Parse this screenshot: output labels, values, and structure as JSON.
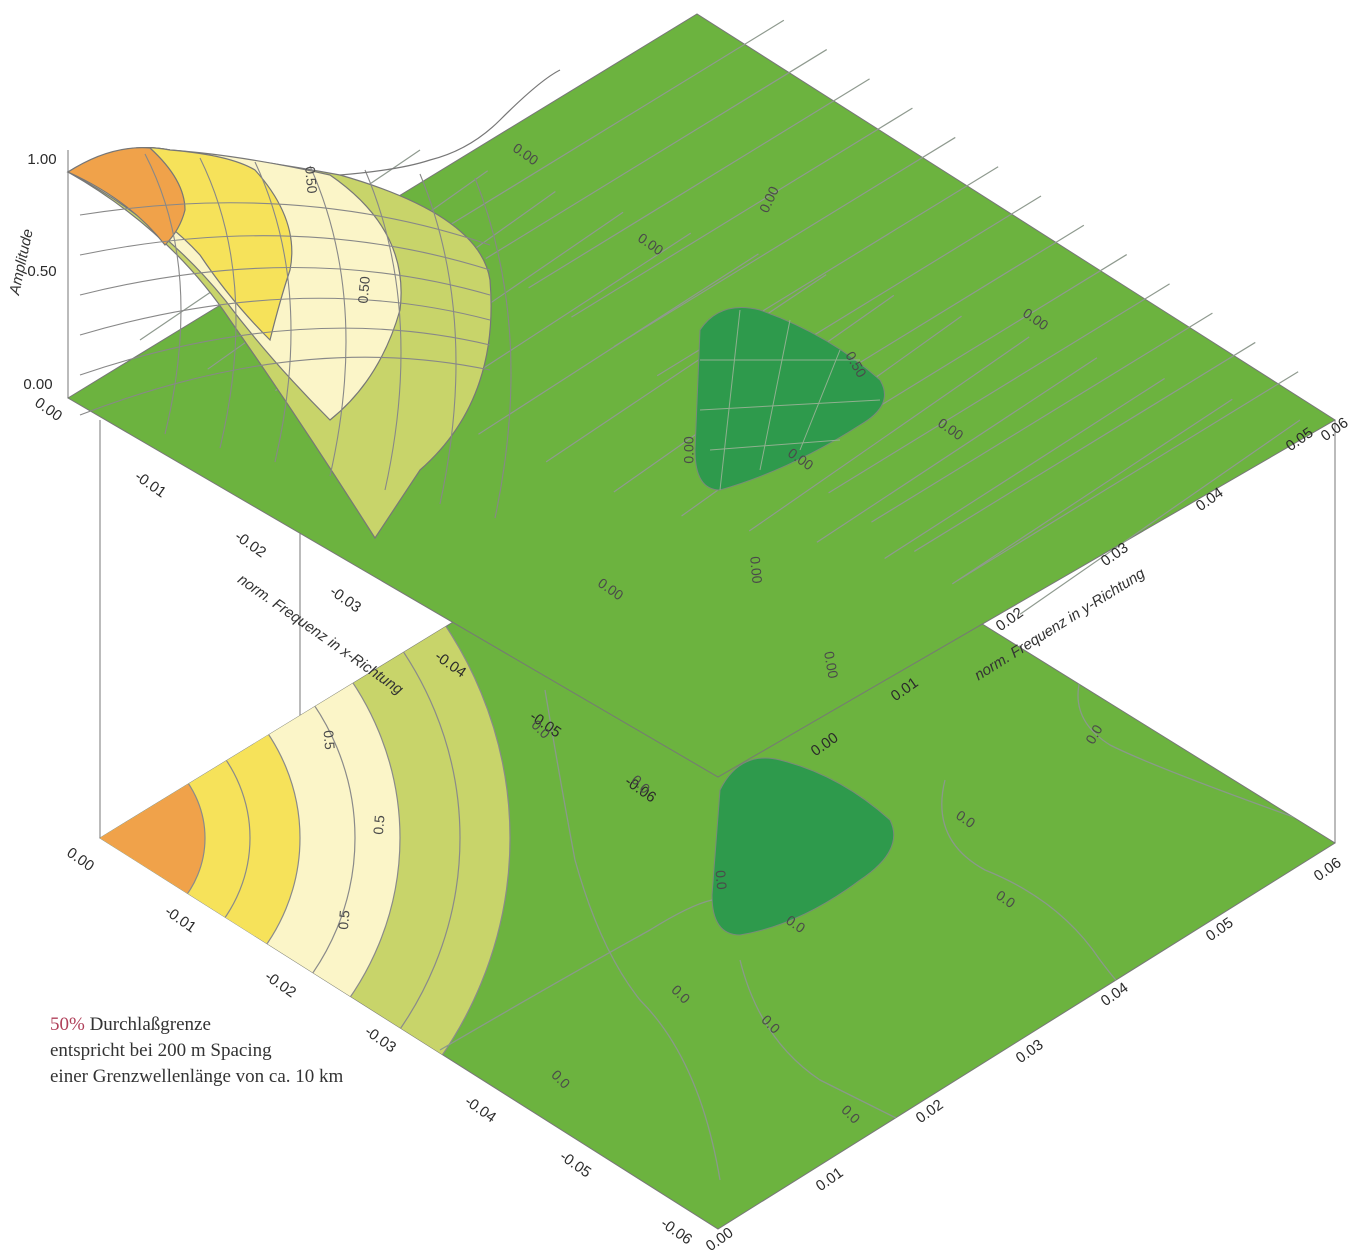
{
  "chart_data": {
    "type": "surface",
    "description_levels": [
      0.0,
      0.1,
      0.2,
      0.3,
      0.4,
      0.5,
      0.6,
      0.7,
      0.8,
      0.9,
      1.0
    ],
    "xlabel": "norm. Frequenz in x-Richtung",
    "ylabel": "norm. Frequenz in y-Richtung",
    "zlabel": "Amplitude",
    "x_ticks": [
      "0.00",
      "-0.01",
      "-0.02",
      "-0.03",
      "-0.04",
      "-0.05",
      "-0.06"
    ],
    "y_ticks": [
      "0.00",
      "0.01",
      "0.02",
      "0.03",
      "0.04",
      "0.05",
      "0.06"
    ],
    "z_ticks": [
      "0.00",
      "0.50",
      "1.00"
    ],
    "xlim": [
      -0.06,
      0.0
    ],
    "ylim": [
      0.0,
      0.06
    ],
    "zlim": [
      0.0,
      1.0
    ],
    "surface_contour_labels": [
      "0.00",
      "0.00",
      "0.00",
      "0.00",
      "0.00",
      "0.50",
      "0.50",
      "0.50",
      "0.00",
      "0.00",
      "0.00",
      "0.00",
      "0.00"
    ],
    "base_contour_labels": [
      "0.5",
      "0.5",
      "0.5",
      "0.0",
      "0.0",
      "0.0",
      "0.0",
      "0.0",
      "0.0",
      "0.0",
      "0.0",
      "0.0",
      "0.0",
      "0.0"
    ],
    "colors": {
      "level_0": "#6cb33f",
      "level_neg": "#2e9a4c",
      "level_0_5": "#c8d46a",
      "level_0_7": "#fbf5c8",
      "level_0_85": "#f6e25a",
      "level_1": "#f0a24a"
    }
  },
  "annotation": {
    "line1_pct": "50%",
    "line1_rest": " Durchlaßgrenze",
    "line2": "entspricht bei 200 m Spacing",
    "line3": "einer Grenzwellenlänge von ca. 10 km"
  }
}
